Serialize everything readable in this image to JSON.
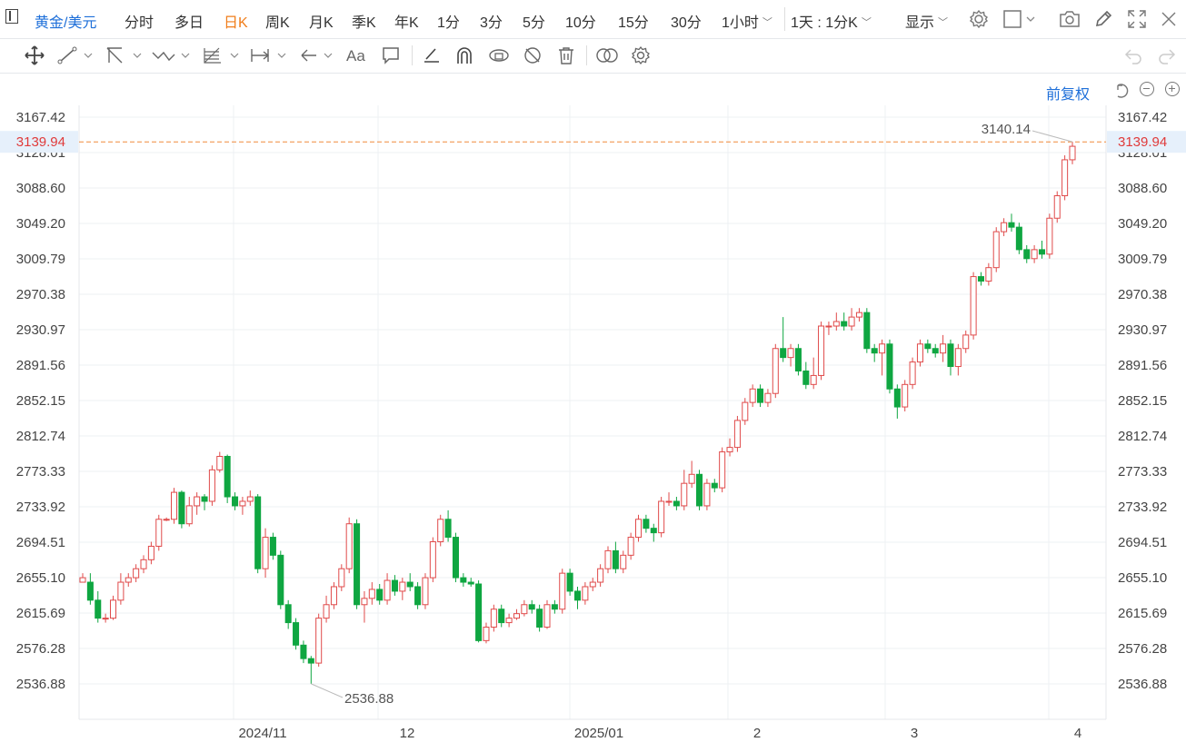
{
  "symbol": "黄金/美元",
  "periods": [
    "分时",
    "多日",
    "日K",
    "周K",
    "月K",
    "季K",
    "年K",
    "1分",
    "3分",
    "5分",
    "10分",
    "15分",
    "30分",
    "1小时"
  ],
  "active_period": "日K",
  "period_dropdown": "1小时",
  "kline_unit": "1天 : 1分K",
  "display_label": "显示",
  "adjust_label": "前复权",
  "colors": {
    "up": "#e04a4a",
    "down": "#0fa641",
    "price_line": "#f08a3c",
    "accent": "#1e6fd9",
    "active": "#f07d1a"
  },
  "icons": [
    "move-icon",
    "line-tool-icon",
    "channel-tool-icon",
    "wave-tool-icon",
    "fib-tool-icon",
    "measure-tool-icon",
    "arrow-tool-icon",
    "text-tool-icon",
    "comment-icon",
    "pen-icon",
    "magnet-icon",
    "lock-icon",
    "hide-icon",
    "trash-icon",
    "compare-icon",
    "settings-icon",
    "undo-icon",
    "redo-icon",
    "camera-icon",
    "edit-icon",
    "fullscreen-icon",
    "reset-icon",
    "zoom-out-icon",
    "zoom-in-icon"
  ],
  "chart_data": {
    "type": "candlestick",
    "y_ticks": [
      "3167.42",
      "3128.01",
      "3088.60",
      "3049.20",
      "3009.79",
      "2970.38",
      "2930.97",
      "2891.56",
      "2852.15",
      "2812.74",
      "2773.33",
      "2733.92",
      "2694.51",
      "2655.10",
      "2615.69",
      "2576.28",
      "2536.88"
    ],
    "ylim": [
      2520,
      3180
    ],
    "x_ticks": [
      "2024/11",
      "12",
      "2025/01",
      "2",
      "3",
      "4"
    ],
    "last_price": "3139.94",
    "max_label": "3140.14",
    "min_label": "2536.88",
    "grid": true,
    "candles": [
      [
        2650,
        2655,
        2650,
        2660
      ],
      [
        2650,
        2630,
        2660,
        2625
      ],
      [
        2630,
        2610,
        2640,
        2605
      ],
      [
        2610,
        2610,
        2615,
        2605
      ],
      [
        2610,
        2630,
        2635,
        2608
      ],
      [
        2630,
        2650,
        2660,
        2625
      ],
      [
        2650,
        2655,
        2660,
        2645
      ],
      [
        2655,
        2665,
        2670,
        2650
      ],
      [
        2665,
        2675,
        2680,
        2660
      ],
      [
        2675,
        2690,
        2695,
        2670
      ],
      [
        2690,
        2720,
        2725,
        2685
      ],
      [
        2720,
        2720,
        2722,
        2718
      ],
      [
        2720,
        2750,
        2755,
        2715
      ],
      [
        2750,
        2715,
        2752,
        2710
      ],
      [
        2715,
        2735,
        2745,
        2712
      ],
      [
        2735,
        2745,
        2750,
        2725
      ],
      [
        2745,
        2740,
        2748,
        2730
      ],
      [
        2740,
        2775,
        2780,
        2735
      ],
      [
        2775,
        2790,
        2795,
        2772
      ],
      [
        2790,
        2745,
        2792,
        2738
      ],
      [
        2745,
        2735,
        2750,
        2730
      ],
      [
        2735,
        2740,
        2745,
        2725
      ],
      [
        2740,
        2745,
        2752,
        2735
      ],
      [
        2745,
        2665,
        2748,
        2660
      ],
      [
        2665,
        2700,
        2710,
        2655
      ],
      [
        2700,
        2680,
        2705,
        2675
      ],
      [
        2680,
        2625,
        2685,
        2620
      ],
      [
        2625,
        2605,
        2630,
        2598
      ],
      [
        2605,
        2580,
        2610,
        2575
      ],
      [
        2580,
        2565,
        2585,
        2560
      ],
      [
        2565,
        2560,
        2568,
        2537
      ],
      [
        2560,
        2610,
        2615,
        2556
      ],
      [
        2610,
        2625,
        2635,
        2605
      ],
      [
        2625,
        2645,
        2650,
        2620
      ],
      [
        2645,
        2665,
        2670,
        2640
      ],
      [
        2665,
        2715,
        2722,
        2660
      ],
      [
        2715,
        2625,
        2720,
        2620
      ],
      [
        2625,
        2632,
        2640,
        2605
      ],
      [
        2632,
        2642,
        2650,
        2625
      ],
      [
        2642,
        2630,
        2648,
        2625
      ],
      [
        2630,
        2652,
        2660,
        2625
      ],
      [
        2652,
        2640,
        2658,
        2635
      ],
      [
        2640,
        2650,
        2655,
        2630
      ],
      [
        2650,
        2645,
        2660,
        2640
      ],
      [
        2645,
        2625,
        2650,
        2620
      ],
      [
        2625,
        2655,
        2660,
        2620
      ],
      [
        2655,
        2695,
        2700,
        2650
      ],
      [
        2695,
        2720,
        2725,
        2690
      ],
      [
        2720,
        2700,
        2730,
        2695
      ],
      [
        2700,
        2655,
        2705,
        2650
      ],
      [
        2655,
        2650,
        2660,
        2645
      ],
      [
        2650,
        2648,
        2655,
        2645
      ],
      [
        2648,
        2585,
        2652,
        2583
      ],
      [
        2585,
        2600,
        2605,
        2582
      ],
      [
        2600,
        2620,
        2625,
        2595
      ],
      [
        2620,
        2605,
        2625,
        2600
      ],
      [
        2605,
        2610,
        2615,
        2600
      ],
      [
        2610,
        2615,
        2620,
        2608
      ],
      [
        2615,
        2625,
        2630,
        2612
      ],
      [
        2625,
        2620,
        2630,
        2615
      ],
      [
        2620,
        2600,
        2625,
        2595
      ],
      [
        2600,
        2625,
        2630,
        2598
      ],
      [
        2625,
        2620,
        2630,
        2615
      ],
      [
        2620,
        2660,
        2665,
        2615
      ],
      [
        2660,
        2640,
        2665,
        2635
      ],
      [
        2640,
        2630,
        2645,
        2620
      ],
      [
        2630,
        2645,
        2650,
        2625
      ],
      [
        2645,
        2650,
        2655,
        2640
      ],
      [
        2650,
        2665,
        2670,
        2645
      ],
      [
        2665,
        2685,
        2690,
        2660
      ],
      [
        2685,
        2665,
        2695,
        2660
      ],
      [
        2665,
        2680,
        2685,
        2660
      ],
      [
        2680,
        2700,
        2705,
        2675
      ],
      [
        2700,
        2720,
        2725,
        2695
      ],
      [
        2720,
        2710,
        2725,
        2705
      ],
      [
        2710,
        2705,
        2715,
        2695
      ],
      [
        2705,
        2740,
        2745,
        2700
      ],
      [
        2740,
        2740,
        2750,
        2735
      ],
      [
        2740,
        2735,
        2745,
        2730
      ],
      [
        2735,
        2760,
        2775,
        2730
      ],
      [
        2760,
        2770,
        2785,
        2755
      ],
      [
        2770,
        2735,
        2775,
        2730
      ],
      [
        2735,
        2760,
        2765,
        2730
      ],
      [
        2760,
        2755,
        2765,
        2750
      ],
      [
        2755,
        2795,
        2800,
        2750
      ],
      [
        2795,
        2800,
        2810,
        2790
      ],
      [
        2800,
        2830,
        2835,
        2795
      ],
      [
        2830,
        2850,
        2855,
        2825
      ],
      [
        2850,
        2865,
        2870,
        2845
      ],
      [
        2865,
        2850,
        2870,
        2845
      ],
      [
        2850,
        2860,
        2865,
        2845
      ],
      [
        2860,
        2910,
        2915,
        2855
      ],
      [
        2910,
        2900,
        2945,
        2895
      ],
      [
        2900,
        2910,
        2915,
        2890
      ],
      [
        2910,
        2885,
        2915,
        2880
      ],
      [
        2885,
        2870,
        2895,
        2865
      ],
      [
        2870,
        2880,
        2900,
        2865
      ],
      [
        2880,
        2935,
        2940,
        2875
      ],
      [
        2935,
        2935,
        2940,
        2925
      ],
      [
        2935,
        2940,
        2950,
        2930
      ],
      [
        2940,
        2935,
        2950,
        2930
      ],
      [
        2935,
        2945,
        2955,
        2930
      ],
      [
        2945,
        2950,
        2955,
        2940
      ],
      [
        2950,
        2910,
        2955,
        2905
      ],
      [
        2910,
        2905,
        2915,
        2895
      ],
      [
        2905,
        2915,
        2920,
        2880
      ],
      [
        2915,
        2865,
        2920,
        2860
      ],
      [
        2865,
        2845,
        2870,
        2832
      ],
      [
        2845,
        2870,
        2875,
        2840
      ],
      [
        2870,
        2895,
        2900,
        2865
      ],
      [
        2895,
        2915,
        2920,
        2890
      ],
      [
        2915,
        2910,
        2920,
        2905
      ],
      [
        2910,
        2905,
        2915,
        2900
      ],
      [
        2905,
        2915,
        2925,
        2895
      ],
      [
        2915,
        2890,
        2920,
        2880
      ],
      [
        2890,
        2910,
        2915,
        2880
      ],
      [
        2910,
        2925,
        2930,
        2905
      ],
      [
        2925,
        2990,
        2995,
        2920
      ],
      [
        2990,
        2985,
        2995,
        2980
      ],
      [
        2985,
        3000,
        3005,
        2980
      ],
      [
        3000,
        3040,
        3045,
        2995
      ],
      [
        3040,
        3050,
        3055,
        3035
      ],
      [
        3050,
        3045,
        3060,
        3040
      ],
      [
        3045,
        3020,
        3050,
        3015
      ],
      [
        3020,
        3010,
        3025,
        3005
      ],
      [
        3010,
        3020,
        3025,
        3005
      ],
      [
        3020,
        3015,
        3030,
        3010
      ],
      [
        3015,
        3055,
        3060,
        3010
      ],
      [
        3055,
        3080,
        3085,
        3050
      ],
      [
        3080,
        3120,
        3125,
        3075
      ],
      [
        3120,
        3135,
        3140,
        3115
      ]
    ]
  }
}
